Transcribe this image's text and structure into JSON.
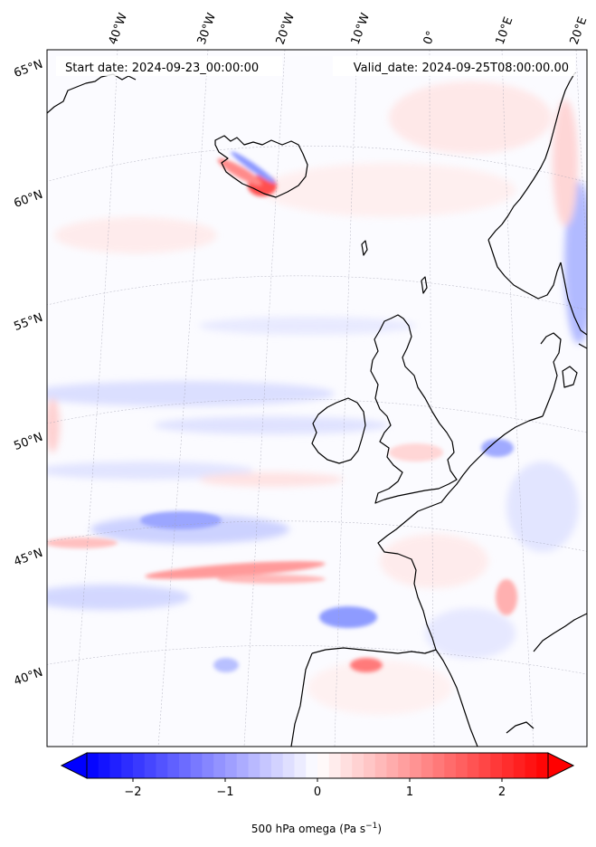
{
  "header": {
    "start_date": "Start date: 2024-09-23_00:00:00",
    "valid_date": "Valid_date: 2024-09-25T08:00:00.00"
  },
  "map": {
    "projection": "lambert-conformal",
    "lon_labels": [
      "40°W",
      "30°W",
      "20°W",
      "10°W",
      "0°",
      "10°E",
      "20°E"
    ],
    "lat_labels": [
      "65°N",
      "60°N",
      "55°N",
      "50°N",
      "45°N",
      "40°N"
    ],
    "features": [
      "iceland",
      "ireland",
      "great-britain",
      "norway",
      "denmark",
      "france",
      "iberia",
      "north-africa"
    ]
  },
  "colorbar": {
    "colormap": "bwr",
    "min": -2.5,
    "max": 2.5,
    "ticks": [
      -2,
      -1,
      0,
      1,
      2
    ],
    "tick_labels": [
      "−2",
      "−1",
      "0",
      "1",
      "2"
    ],
    "label": "500 hPa omega (Pa s",
    "label_exp": "−1",
    "label_end": ")",
    "colors": {
      "neg": "#0000ff",
      "mid": "#ffffff",
      "pos": "#ff0000"
    }
  }
}
